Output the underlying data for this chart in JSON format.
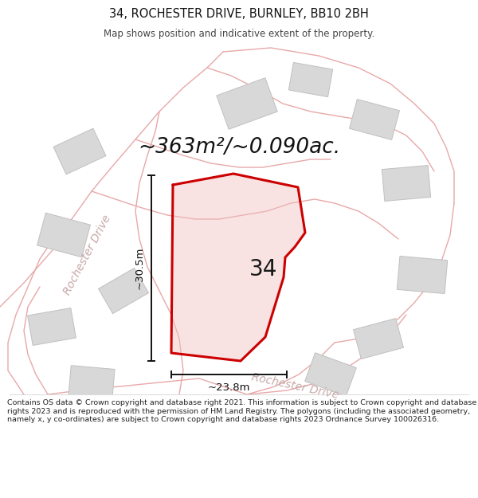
{
  "title_line1": "34, ROCHESTER DRIVE, BURNLEY, BB10 2BH",
  "title_line2": "Map shows position and indicative extent of the property.",
  "area_text": "~363m²/~0.090ac.",
  "number_label": "34",
  "dim_width_label": "~23.8m",
  "dim_height_label": "~30.5m",
  "footer_text": "Contains OS data © Crown copyright and database right 2021. This information is subject to Crown copyright and database rights 2023 and is reproduced with the permission of HM Land Registry. The polygons (including the associated geometry, namely x, y co-ordinates) are subject to Crown copyright and database rights 2023 Ordnance Survey 100026316.",
  "bg_color": "#f2f2f2",
  "road_color": "#e8a8a8",
  "building_color": "#d8d8d8",
  "building_edge_color": "#c0c0c0",
  "highlight_color": "#cc0000",
  "dimension_color": "#111111",
  "road_text_color": "#c8a8a8",
  "footer_bg": "#ffffff",
  "title_color": "#111111",
  "subtitle_color": "#444444"
}
